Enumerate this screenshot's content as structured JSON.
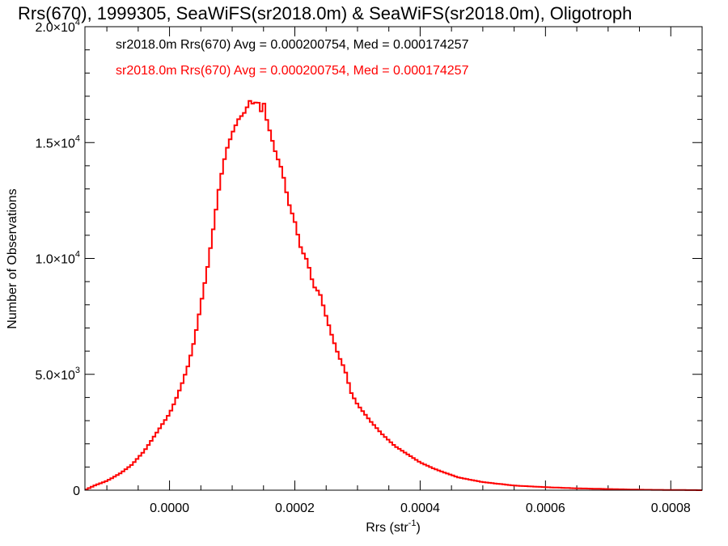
{
  "chart_data": {
    "type": "histogram",
    "title": "Rrs(670), 1999305, SeaWiFS(sr2018.0m) & SeaWiFS(sr2018.0m), Oligotroph",
    "xlabel": "Rrs (str",
    "xlabel_sup": "-1",
    "xlabel_close": ")",
    "ylabel": "Number of Observations",
    "xlim": [
      -0.000135,
      0.00085
    ],
    "ylim": [
      0,
      20000
    ],
    "x_ticks": [
      0.0,
      0.0002,
      0.0004,
      0.0006,
      0.0008
    ],
    "x_tick_labels": [
      "0.0000",
      "0.0002",
      "0.0004",
      "0.0006",
      "0.0008"
    ],
    "y_ticks": [
      {
        "value": 0,
        "mantissa": "0",
        "exp": ""
      },
      {
        "value": 5000,
        "mantissa": "5.0×10",
        "exp": "3"
      },
      {
        "value": 10000,
        "mantissa": "1.0×10",
        "exp": "4"
      },
      {
        "value": 15000,
        "mantissa": "1.5×10",
        "exp": "4"
      },
      {
        "value": 20000,
        "mantissa": "2.0×10",
        "exp": "4"
      }
    ],
    "annotations": [
      {
        "text": "sr2018.0m Rrs(670) Avg = 0.000200754, Med = 0.000174257",
        "color": "#000000"
      },
      {
        "text": "sr2018.0m Rrs(670) Avg = 0.000200754, Med = 0.000174257",
        "color": "#ff0000"
      }
    ],
    "series": [
      {
        "color": "#ff0000",
        "x": [
          -0.000135,
          -0.00012,
          -0.0001,
          -8e-05,
          -6e-05,
          -4e-05,
          -2e-05,
          0.0,
          1e-05,
          2e-05,
          3e-05,
          4e-05,
          5e-05,
          6e-05,
          7e-05,
          8e-05,
          9e-05,
          0.0001,
          0.00011,
          0.00012,
          0.00013,
          0.000135,
          0.00014,
          0.000145,
          0.00015,
          0.000155,
          0.00016,
          0.00017,
          0.00018,
          0.00019,
          0.0002,
          0.00021,
          0.00022,
          0.00023,
          0.00024,
          0.00025,
          0.00026,
          0.00027,
          0.00028,
          0.00029,
          0.0003,
          0.00032,
          0.00034,
          0.00036,
          0.00038,
          0.0004,
          0.00042,
          0.00044,
          0.00046,
          0.00048,
          0.0005,
          0.00055,
          0.0006,
          0.00065,
          0.0007,
          0.00075,
          0.0008,
          0.00085
        ],
        "y": [
          0,
          200,
          400,
          700,
          1100,
          1700,
          2500,
          3300,
          3900,
          4600,
          5400,
          6500,
          8000,
          9500,
          11300,
          13200,
          14600,
          15400,
          16000,
          16300,
          16900,
          16500,
          17000,
          16200,
          16800,
          16000,
          15500,
          14500,
          13800,
          12400,
          11600,
          10400,
          9900,
          8800,
          8500,
          7500,
          6600,
          5800,
          5200,
          4200,
          3700,
          3000,
          2400,
          1900,
          1550,
          1200,
          950,
          750,
          560,
          450,
          350,
          200,
          130,
          80,
          50,
          20,
          10,
          0
        ]
      }
    ]
  }
}
